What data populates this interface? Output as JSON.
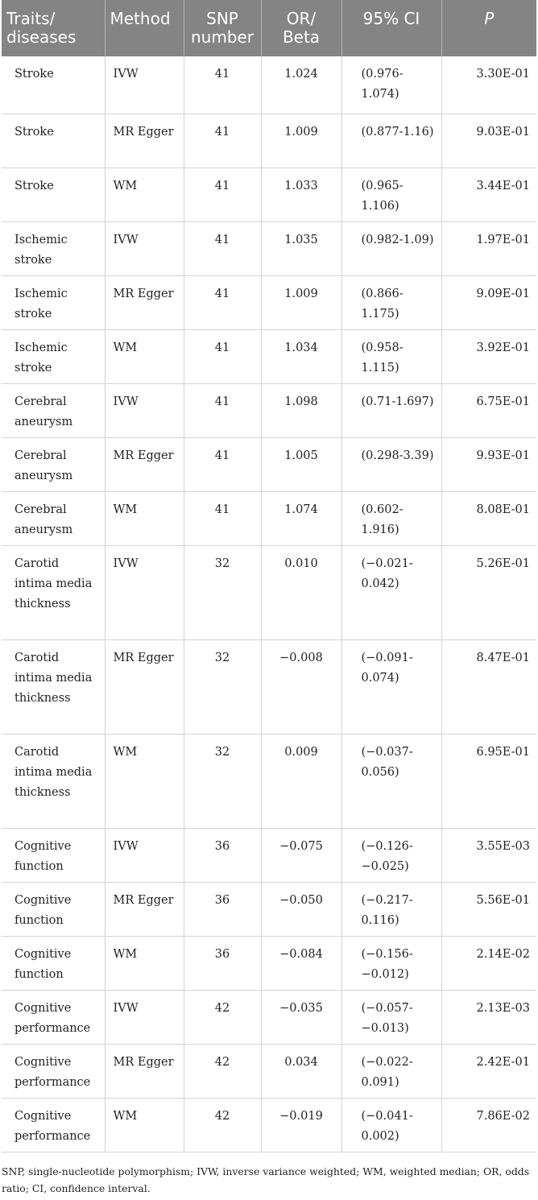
{
  "table": {
    "headers": [
      "Traits/ diseases",
      "Method",
      "SNP number",
      "OR/ Beta",
      "95% CI",
      "P"
    ],
    "rows": [
      [
        "Stroke",
        "IVW",
        "41",
        "1.024",
        "(0.976-1.074)",
        "3.30E-01"
      ],
      [
        "Stroke",
        "MR Egger",
        "41",
        "1.009",
        "(0.877-1.16)",
        "9.03E-01"
      ],
      [
        "Stroke",
        "WM",
        "41",
        "1.033",
        "(0.965-1.106)",
        "3.44E-01"
      ],
      [
        "Ischemic stroke",
        "IVW",
        "41",
        "1.035",
        "(0.982-1.09)",
        "1.97E-01"
      ],
      [
        "Ischemic stroke",
        "MR Egger",
        "41",
        "1.009",
        "(0.866-1.175)",
        "9.09E-01"
      ],
      [
        "Ischemic stroke",
        "WM",
        "41",
        "1.034",
        "(0.958-1.115)",
        "3.92E-01"
      ],
      [
        "Cerebral aneurysm",
        "IVW",
        "41",
        "1.098",
        "(0.71-1.697)",
        "6.75E-01"
      ],
      [
        "Cerebral aneurysm",
        "MR Egger",
        "41",
        "1.005",
        "(0.298-3.39)",
        "9.93E-01"
      ],
      [
        "Cerebral aneurysm",
        "WM",
        "41",
        "1.074",
        "(0.602-1.916)",
        "8.08E-01"
      ],
      [
        "Carotid intima media thickness",
        "IVW",
        "32",
        "0.010",
        "(−0.021-0.042)",
        "5.26E-01"
      ],
      [
        "Carotid intima media thickness",
        "MR Egger",
        "32",
        "−0.008",
        "(−0.091-0.074)",
        "8.47E-01"
      ],
      [
        "Carotid intima media thickness",
        "WM",
        "32",
        "0.009",
        "(−0.037-0.056)",
        "6.95E-01"
      ],
      [
        "Cognitive function",
        "IVW",
        "36",
        "−0.075",
        "(−0.126-−0.025)",
        "3.55E-03"
      ],
      [
        "Cognitive function",
        "MR Egger",
        "36",
        "−0.050",
        "(−0.217-0.116)",
        "5.56E-01"
      ],
      [
        "Cognitive function",
        "WM",
        "36",
        "−0.084",
        "(−0.156-−0.012)",
        "2.14E-02"
      ],
      [
        "Cognitive performance",
        "IVW",
        "42",
        "−0.035",
        "(−0.057-−0.013)",
        "2.13E-03"
      ],
      [
        "Cognitive performance",
        "MR Egger",
        "42",
        "0.034",
        "(−0.022-0.091)",
        "2.42E-01"
      ],
      [
        "Cognitive performance",
        "WM",
        "42",
        "−0.019",
        "(−0.041-0.002)",
        "7.86E-02"
      ]
    ]
  },
  "footnote": "SNP, single-nucleotide polymorphism; IVW, inverse variance weighted; WM, weighted median; OR, odds ratio; CI, confidence interval."
}
